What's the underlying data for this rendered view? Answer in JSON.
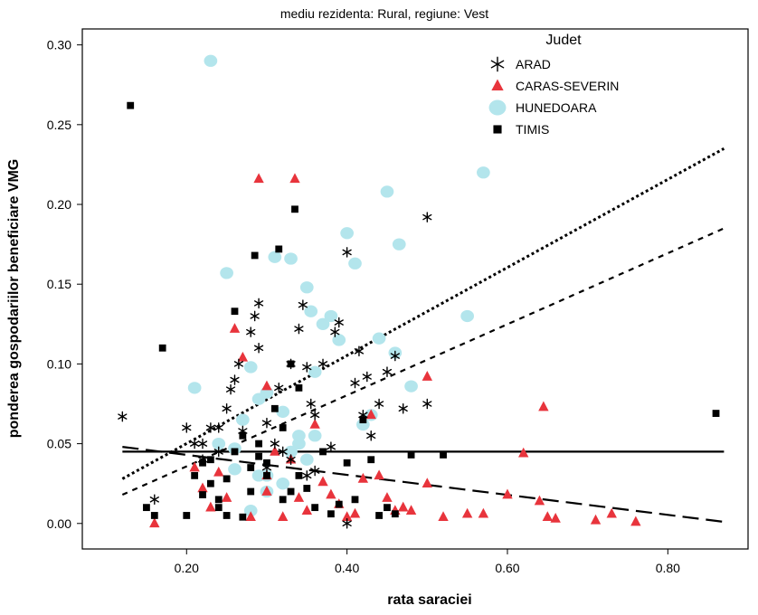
{
  "chart_data": {
    "type": "scatter",
    "title": "",
    "subtitle": "mediu rezidenta: Rural, regiune: Vest",
    "xlabel": "rata saraciei",
    "ylabel": "ponderea gospodariilor beneficiare VMG",
    "xlim": [
      0.07,
      0.9
    ],
    "ylim": [
      -0.016,
      0.31
    ],
    "xticks": [
      0.2,
      0.4,
      0.6,
      0.8
    ],
    "xtick_labels": [
      "0.20",
      "0.40",
      "0.60",
      "0.80"
    ],
    "yticks": [
      0.0,
      0.05,
      0.1,
      0.15,
      0.2,
      0.25,
      0.3
    ],
    "ytick_labels": [
      "0.00",
      "0.05",
      "0.10",
      "0.15",
      "0.20",
      "0.25",
      "0.30"
    ],
    "grid": false,
    "legend": {
      "title": "Judet",
      "placement": "top-right"
    },
    "series": [
      {
        "name": "ARAD",
        "marker": "asterisk",
        "color": "#000000",
        "points": [
          [
            0.12,
            0.067
          ],
          [
            0.16,
            0.015
          ],
          [
            0.2,
            0.06
          ],
          [
            0.21,
            0.05
          ],
          [
            0.22,
            0.04
          ],
          [
            0.23,
            0.06
          ],
          [
            0.24,
            0.045
          ],
          [
            0.25,
            0.072
          ],
          [
            0.255,
            0.084
          ],
          [
            0.26,
            0.09
          ],
          [
            0.265,
            0.1
          ],
          [
            0.27,
            0.058
          ],
          [
            0.28,
            0.12
          ],
          [
            0.285,
            0.13
          ],
          [
            0.29,
            0.138
          ],
          [
            0.29,
            0.11
          ],
          [
            0.3,
            0.063
          ],
          [
            0.31,
            0.05
          ],
          [
            0.315,
            0.085
          ],
          [
            0.32,
            0.045
          ],
          [
            0.33,
            0.1
          ],
          [
            0.34,
            0.122
          ],
          [
            0.345,
            0.137
          ],
          [
            0.35,
            0.098
          ],
          [
            0.355,
            0.075
          ],
          [
            0.36,
            0.068
          ],
          [
            0.37,
            0.1
          ],
          [
            0.38,
            0.048
          ],
          [
            0.385,
            0.12
          ],
          [
            0.39,
            0.126
          ],
          [
            0.4,
            0.17
          ],
          [
            0.41,
            0.088
          ],
          [
            0.415,
            0.108
          ],
          [
            0.42,
            0.068
          ],
          [
            0.425,
            0.092
          ],
          [
            0.43,
            0.055
          ],
          [
            0.44,
            0.075
          ],
          [
            0.45,
            0.095
          ],
          [
            0.46,
            0.105
          ],
          [
            0.47,
            0.072
          ],
          [
            0.5,
            0.192
          ],
          [
            0.5,
            0.075
          ],
          [
            0.22,
            0.05
          ],
          [
            0.24,
            0.06
          ],
          [
            0.35,
            0.03
          ],
          [
            0.36,
            0.033
          ],
          [
            0.3,
            0.035
          ],
          [
            0.4,
            0.0
          ],
          [
            0.33,
            0.04
          ]
        ]
      },
      {
        "name": "CARAS-SEVERIN",
        "marker": "triangle",
        "color": "#e8343c",
        "points": [
          [
            0.16,
            0.0
          ],
          [
            0.21,
            0.035
          ],
          [
            0.22,
            0.022
          ],
          [
            0.23,
            0.01
          ],
          [
            0.24,
            0.032
          ],
          [
            0.25,
            0.016
          ],
          [
            0.26,
            0.122
          ],
          [
            0.27,
            0.104
          ],
          [
            0.28,
            0.004
          ],
          [
            0.29,
            0.216
          ],
          [
            0.3,
            0.086
          ],
          [
            0.3,
            0.03
          ],
          [
            0.31,
            0.045
          ],
          [
            0.32,
            0.004
          ],
          [
            0.33,
            0.04
          ],
          [
            0.335,
            0.216
          ],
          [
            0.34,
            0.016
          ],
          [
            0.35,
            0.008
          ],
          [
            0.36,
            0.062
          ],
          [
            0.37,
            0.026
          ],
          [
            0.38,
            0.018
          ],
          [
            0.39,
            0.012
          ],
          [
            0.4,
            0.004
          ],
          [
            0.41,
            0.006
          ],
          [
            0.42,
            0.028
          ],
          [
            0.43,
            0.068
          ],
          [
            0.44,
            0.03
          ],
          [
            0.45,
            0.016
          ],
          [
            0.46,
            0.008
          ],
          [
            0.47,
            0.01
          ],
          [
            0.48,
            0.008
          ],
          [
            0.5,
            0.092
          ],
          [
            0.52,
            0.004
          ],
          [
            0.55,
            0.006
          ],
          [
            0.57,
            0.006
          ],
          [
            0.6,
            0.018
          ],
          [
            0.62,
            0.044
          ],
          [
            0.64,
            0.014
          ],
          [
            0.645,
            0.073
          ],
          [
            0.65,
            0.004
          ],
          [
            0.66,
            0.003
          ],
          [
            0.71,
            0.002
          ],
          [
            0.73,
            0.006
          ],
          [
            0.76,
            0.001
          ],
          [
            0.5,
            0.025
          ],
          [
            0.3,
            0.02
          ]
        ]
      },
      {
        "name": "HUNEDOARA",
        "marker": "circle",
        "color": "#b3e5ec",
        "points": [
          [
            0.21,
            0.085
          ],
          [
            0.23,
            0.29
          ],
          [
            0.24,
            0.05
          ],
          [
            0.25,
            0.157
          ],
          [
            0.26,
            0.034
          ],
          [
            0.27,
            0.065
          ],
          [
            0.28,
            0.098
          ],
          [
            0.29,
            0.078
          ],
          [
            0.3,
            0.082
          ],
          [
            0.31,
            0.167
          ],
          [
            0.32,
            0.07
          ],
          [
            0.33,
            0.166
          ],
          [
            0.34,
            0.05
          ],
          [
            0.35,
            0.148
          ],
          [
            0.355,
            0.133
          ],
          [
            0.36,
            0.095
          ],
          [
            0.37,
            0.125
          ],
          [
            0.38,
            0.13
          ],
          [
            0.39,
            0.115
          ],
          [
            0.4,
            0.182
          ],
          [
            0.41,
            0.163
          ],
          [
            0.42,
            0.062
          ],
          [
            0.43,
            0.068
          ],
          [
            0.44,
            0.116
          ],
          [
            0.45,
            0.208
          ],
          [
            0.46,
            0.107
          ],
          [
            0.465,
            0.175
          ],
          [
            0.48,
            0.086
          ],
          [
            0.55,
            0.13
          ],
          [
            0.57,
            0.22
          ],
          [
            0.3,
            0.02
          ],
          [
            0.28,
            0.008
          ],
          [
            0.32,
            0.025
          ],
          [
            0.34,
            0.055
          ],
          [
            0.35,
            0.04
          ],
          [
            0.36,
            0.055
          ],
          [
            0.33,
            0.045
          ],
          [
            0.3,
            0.03
          ],
          [
            0.29,
            0.03
          ],
          [
            0.26,
            0.047
          ]
        ]
      },
      {
        "name": "TIMIS",
        "marker": "square",
        "color": "#000000",
        "points": [
          [
            0.13,
            0.262
          ],
          [
            0.15,
            0.01
          ],
          [
            0.16,
            0.005
          ],
          [
            0.17,
            0.11
          ],
          [
            0.2,
            0.005
          ],
          [
            0.21,
            0.03
          ],
          [
            0.22,
            0.038
          ],
          [
            0.23,
            0.025
          ],
          [
            0.24,
            0.015
          ],
          [
            0.25,
            0.028
          ],
          [
            0.26,
            0.133
          ],
          [
            0.27,
            0.055
          ],
          [
            0.28,
            0.02
          ],
          [
            0.285,
            0.168
          ],
          [
            0.29,
            0.042
          ],
          [
            0.3,
            0.03
          ],
          [
            0.31,
            0.072
          ],
          [
            0.315,
            0.172
          ],
          [
            0.32,
            0.06
          ],
          [
            0.33,
            0.1
          ],
          [
            0.335,
            0.197
          ],
          [
            0.34,
            0.085
          ],
          [
            0.35,
            0.022
          ],
          [
            0.36,
            0.01
          ],
          [
            0.37,
            0.045
          ],
          [
            0.38,
            0.006
          ],
          [
            0.39,
            0.012
          ],
          [
            0.4,
            0.038
          ],
          [
            0.41,
            0.015
          ],
          [
            0.42,
            0.065
          ],
          [
            0.43,
            0.04
          ],
          [
            0.44,
            0.005
          ],
          [
            0.45,
            0.01
          ],
          [
            0.46,
            0.006
          ],
          [
            0.48,
            0.043
          ],
          [
            0.52,
            0.043
          ],
          [
            0.86,
            0.069
          ],
          [
            0.25,
            0.005
          ],
          [
            0.24,
            0.01
          ],
          [
            0.27,
            0.004
          ],
          [
            0.29,
            0.05
          ],
          [
            0.3,
            0.038
          ],
          [
            0.32,
            0.015
          ],
          [
            0.23,
            0.04
          ],
          [
            0.22,
            0.018
          ],
          [
            0.26,
            0.045
          ],
          [
            0.33,
            0.02
          ],
          [
            0.34,
            0.03
          ],
          [
            0.28,
            0.035
          ]
        ]
      }
    ],
    "fit_lines": [
      {
        "style": "dotted",
        "from": [
          0.12,
          0.028
        ],
        "to": [
          0.87,
          0.235
        ]
      },
      {
        "style": "short-dash",
        "from": [
          0.12,
          0.018
        ],
        "to": [
          0.87,
          0.185
        ]
      },
      {
        "style": "solid",
        "from": [
          0.12,
          0.045
        ],
        "to": [
          0.87,
          0.045
        ]
      },
      {
        "style": "long-dash",
        "from": [
          0.12,
          0.048
        ],
        "to": [
          0.87,
          0.001
        ]
      }
    ]
  }
}
